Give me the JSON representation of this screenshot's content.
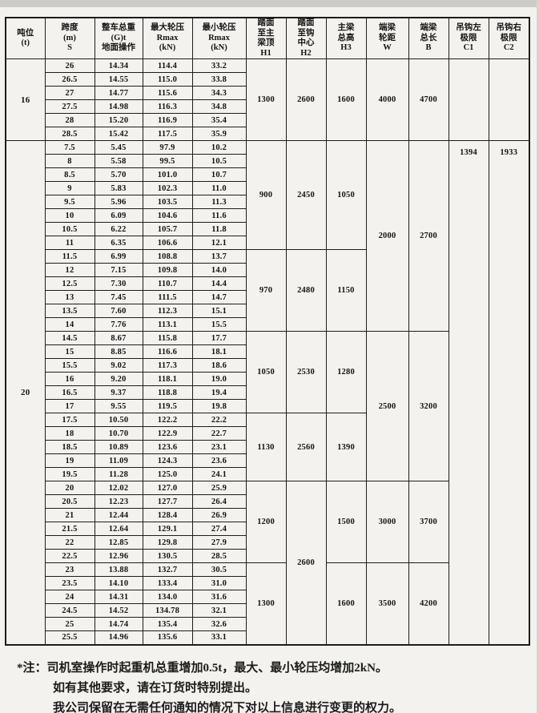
{
  "colors": {
    "line": "#1d1d1d",
    "page_bg": "#f3f2ef",
    "scan_band": "#cccbc9",
    "text": "#141414"
  },
  "table": {
    "headers": [
      {
        "id": "tonnage",
        "text": "吨位\n(t)"
      },
      {
        "id": "span",
        "text": "跨度\n(m)\nS"
      },
      {
        "id": "weight",
        "text": "整车总重\n(G)t\n地面操作"
      },
      {
        "id": "rmax",
        "text": "最大轮压\nRmax\n(kN)"
      },
      {
        "id": "rmin",
        "text": "最小轮压\nRmax\n(kN)"
      },
      {
        "id": "h1",
        "text": "踏面\n至主\n梁顶\nH1"
      },
      {
        "id": "h2",
        "text": "踏面\n至钩\n中心\nH2"
      },
      {
        "id": "h3",
        "text": "主梁\n总高\nH3"
      },
      {
        "id": "w",
        "text": "端梁\n轮距\nW"
      },
      {
        "id": "b",
        "text": "端梁\n总长\nB"
      },
      {
        "id": "c1",
        "text": "吊钩左\n极限\nC1"
      },
      {
        "id": "c2",
        "text": "吊钩右\n极限\nC2"
      }
    ],
    "sections": [
      {
        "tonnage": "16",
        "rows": [
          [
            "26",
            "14.34",
            "114.4",
            "33.2"
          ],
          [
            "26.5",
            "14.55",
            "115.0",
            "33.8"
          ],
          [
            "27",
            "14.77",
            "115.6",
            "34.3"
          ],
          [
            "27.5",
            "14.98",
            "116.3",
            "34.8"
          ],
          [
            "28",
            "15.20",
            "116.9",
            "35.4"
          ],
          [
            "28.5",
            "15.42",
            "117.5",
            "35.9"
          ]
        ],
        "merged": {
          "h1": [
            {
              "span": 6,
              "value": "1300"
            }
          ],
          "h2": [
            {
              "span": 6,
              "value": "2600"
            }
          ],
          "h3": [
            {
              "span": 6,
              "value": "1600"
            }
          ],
          "w": [
            {
              "span": 6,
              "value": "4000"
            }
          ],
          "b": [
            {
              "span": 6,
              "value": "4700"
            }
          ],
          "c1": [
            {
              "span": 6,
              "value": ""
            }
          ],
          "c2": [
            {
              "span": 6,
              "value": ""
            }
          ]
        }
      },
      {
        "tonnage": "20",
        "rows": [
          [
            "7.5",
            "5.45",
            "97.9",
            "10.2"
          ],
          [
            "8",
            "5.58",
            "99.5",
            "10.5"
          ],
          [
            "8.5",
            "5.70",
            "101.0",
            "10.7"
          ],
          [
            "9",
            "5.83",
            "102.3",
            "11.0"
          ],
          [
            "9.5",
            "5.96",
            "103.5",
            "11.3"
          ],
          [
            "10",
            "6.09",
            "104.6",
            "11.6"
          ],
          [
            "10.5",
            "6.22",
            "105.7",
            "11.8"
          ],
          [
            "11",
            "6.35",
            "106.6",
            "12.1"
          ],
          [
            "11.5",
            "6.99",
            "108.8",
            "13.7"
          ],
          [
            "12",
            "7.15",
            "109.8",
            "14.0"
          ],
          [
            "12.5",
            "7.30",
            "110.7",
            "14.4"
          ],
          [
            "13",
            "7.45",
            "111.5",
            "14.7"
          ],
          [
            "13.5",
            "7.60",
            "112.3",
            "15.1"
          ],
          [
            "14",
            "7.76",
            "113.1",
            "15.5"
          ],
          [
            "14.5",
            "8.67",
            "115.8",
            "17.7"
          ],
          [
            "15",
            "8.85",
            "116.6",
            "18.1"
          ],
          [
            "15.5",
            "9.02",
            "117.3",
            "18.6"
          ],
          [
            "16",
            "9.20",
            "118.1",
            "19.0"
          ],
          [
            "16.5",
            "9.37",
            "118.8",
            "19.4"
          ],
          [
            "17",
            "9.55",
            "119.5",
            "19.8"
          ],
          [
            "17.5",
            "10.50",
            "122.2",
            "22.2"
          ],
          [
            "18",
            "10.70",
            "122.9",
            "22.7"
          ],
          [
            "18.5",
            "10.89",
            "123.6",
            "23.1"
          ],
          [
            "19",
            "11.09",
            "124.3",
            "23.6"
          ],
          [
            "19.5",
            "11.28",
            "125.0",
            "24.1"
          ],
          [
            "20",
            "12.02",
            "127.0",
            "25.9"
          ],
          [
            "20.5",
            "12.23",
            "127.7",
            "26.4"
          ],
          [
            "21",
            "12.44",
            "128.4",
            "26.9"
          ],
          [
            "21.5",
            "12.64",
            "129.1",
            "27.4"
          ],
          [
            "22",
            "12.85",
            "129.8",
            "27.9"
          ],
          [
            "22.5",
            "12.96",
            "130.5",
            "28.5"
          ],
          [
            "23",
            "13.88",
            "132.7",
            "30.5"
          ],
          [
            "23.5",
            "14.10",
            "133.4",
            "31.0"
          ],
          [
            "24",
            "14.31",
            "134.0",
            "31.6"
          ],
          [
            "24.5",
            "14.52",
            "134.78",
            "32.1"
          ],
          [
            "25",
            "14.74",
            "135.4",
            "32.6"
          ],
          [
            "25.5",
            "14.96",
            "135.6",
            "33.1"
          ]
        ],
        "merged": {
          "h1": [
            {
              "span": 8,
              "value": "900"
            },
            {
              "span": 6,
              "value": "970"
            },
            {
              "span": 6,
              "value": "1050"
            },
            {
              "span": 5,
              "value": "1130"
            },
            {
              "span": 6,
              "value": "1200"
            },
            {
              "span": 6,
              "value": "1300"
            }
          ],
          "h2": [
            {
              "span": 8,
              "value": "2450"
            },
            {
              "span": 6,
              "value": "2480"
            },
            {
              "span": 6,
              "value": "2530"
            },
            {
              "span": 5,
              "value": "2560"
            },
            {
              "span": 12,
              "value": "2600"
            }
          ],
          "h3": [
            {
              "span": 8,
              "value": "1050"
            },
            {
              "span": 6,
              "value": "1150"
            },
            {
              "span": 6,
              "value": "1280"
            },
            {
              "span": 5,
              "value": "1390"
            },
            {
              "span": 6,
              "value": "1500"
            },
            {
              "span": 6,
              "value": "1600"
            }
          ],
          "w": [
            {
              "span": 14,
              "value": "2000"
            },
            {
              "span": 11,
              "value": "2500"
            },
            {
              "span": 6,
              "value": "3000"
            },
            {
              "span": 6,
              "value": "3500"
            }
          ],
          "b": [
            {
              "span": 14,
              "value": "2700"
            },
            {
              "span": 11,
              "value": "3200"
            },
            {
              "span": 6,
              "value": "3700"
            },
            {
              "span": 6,
              "value": "4200"
            }
          ],
          "c1": [
            {
              "span": 37,
              "value": "1394",
              "valign": "top"
            }
          ],
          "c2": [
            {
              "span": 37,
              "value": "1933",
              "valign": "top"
            }
          ]
        }
      }
    ]
  },
  "notes": {
    "line1": "*注：司机室操作时起重机总重增加0.5t，最大、最小轮压均增加2kN。",
    "line2": "如有其他要求，请在订货时特别提出。",
    "line3": "我公司保留在无需任何通知的情况下对以上信息进行变更的权力。"
  }
}
